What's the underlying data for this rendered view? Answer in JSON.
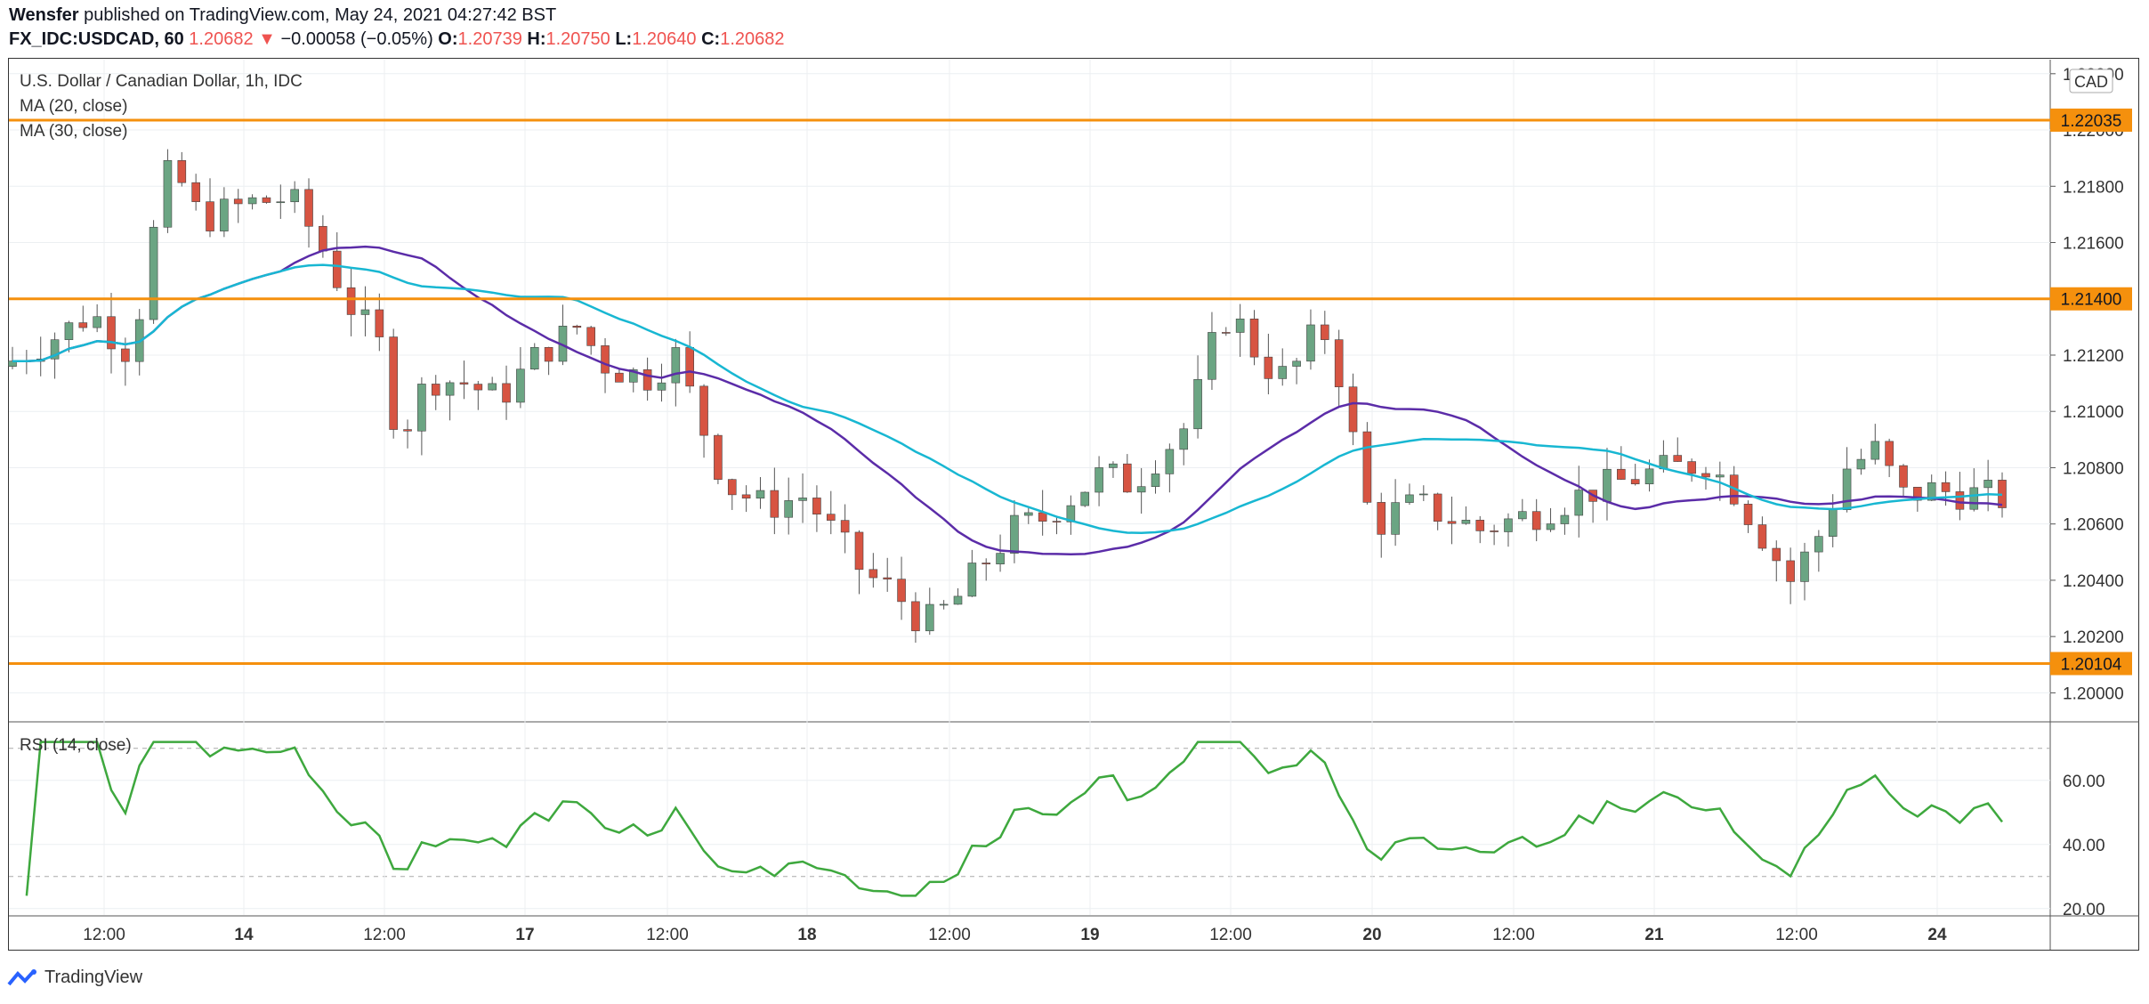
{
  "header": {
    "author": "Wensfer",
    "published_text": "published on TradingView.com, May 24, 2021 04:27:42 BST",
    "symbol": "FX_IDC:USDCAD, 60",
    "last": "1.20682",
    "change": "−0.00058 (−0.05%)",
    "o_label": "O:",
    "o_value": "1.20739",
    "h_label": "H:",
    "h_value": "1.20750",
    "l_label": "L:",
    "l_value": "1.20640",
    "c_label": "C:",
    "c_value": "1.20682"
  },
  "legend": {
    "title": "U.S. Dollar / Canadian Dollar, 1h, IDC",
    "ma20": "MA (20, close)",
    "ma30": "MA (30, close)",
    "rsi": "RSI (14, close)"
  },
  "footer": {
    "brand": "TradingView"
  },
  "colors": {
    "up": "#6ba583",
    "down": "#d75442",
    "ma20": "#5b2ca8",
    "ma30": "#18b7d2",
    "level": "#f5900d",
    "rsi": "#3ea83e",
    "grid": "#eceff2"
  },
  "chart_data": [
    {
      "type": "candlestick",
      "title": "U.S. Dollar / Canadian Dollar, 1h, IDC",
      "currency_badge": "CAD",
      "ylim": [
        1.199,
        1.2225
      ],
      "y_ticks": [
        "1.20000",
        "1.20200",
        "1.20400",
        "1.20600",
        "1.20800",
        "1.21000",
        "1.21200",
        "1.21400",
        "1.21600",
        "1.21800",
        "1.22000",
        "1.22200"
      ],
      "x_ticks": [
        "12:00",
        "14",
        "12:00",
        "17",
        "12:00",
        "18",
        "12:00",
        "19",
        "12:00",
        "20",
        "12:00",
        "21",
        "12:00",
        "24"
      ],
      "horizontal_levels": [
        "1.22035",
        "1.21400",
        "1.20104"
      ],
      "series": [
        {
          "name": "MA (20, close)"
        },
        {
          "name": "MA (30, close)"
        }
      ],
      "candle_count": 142
    },
    {
      "type": "line",
      "title": "RSI (14, close)",
      "ylim": [
        18,
        78
      ],
      "y_ticks": [
        "20.00",
        "40.00",
        "60.00"
      ],
      "bands": [
        30,
        70
      ]
    }
  ]
}
